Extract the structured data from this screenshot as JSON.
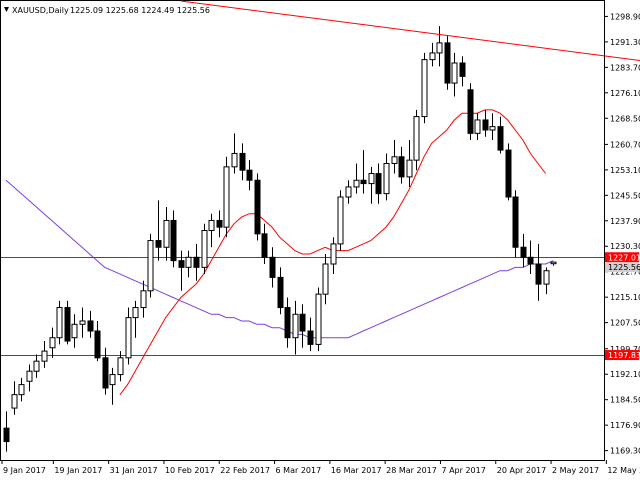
{
  "chart_data": {
    "type": "candlestick",
    "symbol": "XAUUSD",
    "timeframe": "Daily",
    "header": {
      "symbol_tf": "XAUUSD,Daily",
      "ohlc": "1225.09 1225.68 1224.49 1225.56",
      "open": 1225.09,
      "high": 1225.68,
      "low": 1224.49,
      "close": 1225.56
    },
    "ylim": [
      1166.5,
      1303.5
    ],
    "y_ticks": [
      "1298.90",
      "1291.30",
      "1283.70",
      "1276.10",
      "1268.50",
      "1260.70",
      "1253.10",
      "1245.50",
      "1237.90",
      "1230.30",
      "1222.70",
      "1215.10",
      "1207.50",
      "1199.70",
      "1192.10",
      "1184.50",
      "1176.90",
      "1169.30"
    ],
    "x_labels": [
      "9 Jan 2017",
      "19 Jan 2017",
      "31 Jan 2017",
      "10 Feb 2017",
      "22 Feb 2017",
      "6 Mar 2017",
      "16 Mar 2017",
      "28 Mar 2017",
      "7 Apr 2017",
      "20 Apr 2017",
      "2 May 2017",
      "12 May 2017"
    ],
    "price_levels": [
      {
        "value": 1227.01,
        "label": "1227.01",
        "color": "#ff0000"
      },
      {
        "value": 1197.83,
        "label": "1197.83",
        "color": "#ff0000"
      }
    ],
    "current_price": {
      "value": 1225.56,
      "label": "1225.56"
    },
    "candles": [
      [
        1176,
        1181,
        1169,
        1172
      ],
      [
        1182,
        1190,
        1180,
        1186
      ],
      [
        1186,
        1191,
        1184,
        1189
      ],
      [
        1190,
        1195,
        1187,
        1193
      ],
      [
        1193,
        1198,
        1191,
        1196
      ],
      [
        1196,
        1202,
        1194,
        1199
      ],
      [
        1200,
        1206,
        1197,
        1203
      ],
      [
        1203,
        1214,
        1201,
        1212
      ],
      [
        1212,
        1214,
        1201,
        1202
      ],
      [
        1203,
        1210,
        1200,
        1207
      ],
      [
        1207,
        1212,
        1203,
        1208
      ],
      [
        1208,
        1211,
        1203,
        1205
      ],
      [
        1205,
        1208,
        1196,
        1197
      ],
      [
        1197,
        1200,
        1186,
        1188
      ],
      [
        1189,
        1194,
        1183,
        1192
      ],
      [
        1192,
        1199,
        1190,
        1197
      ],
      [
        1197,
        1212,
        1195,
        1209
      ],
      [
        1209,
        1214,
        1203,
        1212
      ],
      [
        1212,
        1220,
        1209,
        1217
      ],
      [
        1217,
        1234,
        1215,
        1232
      ],
      [
        1232,
        1244,
        1226,
        1230
      ],
      [
        1230,
        1242,
        1226,
        1238
      ],
      [
        1238,
        1241,
        1224,
        1226
      ],
      [
        1226,
        1229,
        1217,
        1224
      ],
      [
        1224,
        1229,
        1221,
        1227
      ],
      [
        1227,
        1231,
        1220,
        1224
      ],
      [
        1224,
        1237,
        1222,
        1235
      ],
      [
        1235,
        1240,
        1230,
        1238
      ],
      [
        1238,
        1241,
        1233,
        1236
      ],
      [
        1236,
        1257,
        1233,
        1254
      ],
      [
        1254,
        1264,
        1252,
        1258
      ],
      [
        1258,
        1261,
        1250,
        1253
      ],
      [
        1253,
        1256,
        1247,
        1250
      ],
      [
        1250,
        1252,
        1232,
        1234
      ],
      [
        1234,
        1237,
        1225,
        1227
      ],
      [
        1227,
        1230,
        1218,
        1221
      ],
      [
        1221,
        1224,
        1210,
        1212
      ],
      [
        1212,
        1215,
        1200,
        1203
      ],
      [
        1203,
        1214,
        1198,
        1210
      ],
      [
        1210,
        1213,
        1200,
        1205
      ],
      [
        1205,
        1209,
        1199,
        1201
      ],
      [
        1201,
        1218,
        1199,
        1216
      ],
      [
        1216,
        1228,
        1213,
        1225
      ],
      [
        1225,
        1233,
        1222,
        1231
      ],
      [
        1231,
        1247,
        1229,
        1245
      ],
      [
        1245,
        1250,
        1243,
        1248
      ],
      [
        1248,
        1255,
        1246,
        1250
      ],
      [
        1250,
        1259,
        1246,
        1249
      ],
      [
        1249,
        1254,
        1243,
        1252
      ],
      [
        1252,
        1255,
        1243,
        1246
      ],
      [
        1246,
        1258,
        1244,
        1255
      ],
      [
        1255,
        1262,
        1252,
        1257
      ],
      [
        1257,
        1260,
        1249,
        1251
      ],
      [
        1251,
        1262,
        1248,
        1256
      ],
      [
        1256,
        1271,
        1253,
        1269
      ],
      [
        1269,
        1288,
        1267,
        1286
      ],
      [
        1286,
        1291,
        1284,
        1288
      ],
      [
        1288,
        1296,
        1284,
        1291
      ],
      [
        1291,
        1293,
        1277,
        1279
      ],
      [
        1279,
        1288,
        1275,
        1285
      ],
      [
        1285,
        1287,
        1278,
        1281
      ],
      [
        1277,
        1279,
        1262,
        1264
      ],
      [
        1264,
        1270,
        1262,
        1268
      ],
      [
        1268,
        1271,
        1263,
        1265
      ],
      [
        1265,
        1270,
        1262,
        1266
      ],
      [
        1266,
        1269,
        1258,
        1259
      ],
      [
        1259,
        1261,
        1244,
        1245
      ],
      [
        1245,
        1247,
        1227,
        1230
      ],
      [
        1230,
        1234,
        1224,
        1227
      ],
      [
        1227,
        1232,
        1222,
        1225
      ],
      [
        1225,
        1231,
        1214,
        1219
      ],
      [
        1219,
        1224,
        1216,
        1223
      ],
      [
        1225.09,
        1225.68,
        1224.49,
        1225.56
      ]
    ],
    "series": [
      {
        "type": "moving-average",
        "color": "#ff0000",
        "values": [
          null,
          null,
          null,
          null,
          null,
          null,
          null,
          null,
          null,
          null,
          null,
          null,
          null,
          null,
          null,
          1186,
          1189,
          1193,
          1197,
          1201,
          1205,
          1209,
          1212,
          1215,
          1217,
          1219,
          1222,
          1226,
          1230,
          1234,
          1237,
          1239,
          1240,
          1240,
          1238,
          1236,
          1233,
          1231,
          1229,
          1228,
          1228,
          1229,
          1230,
          1229,
          1229,
          1229,
          1230,
          1231,
          1232,
          1234,
          1236,
          1239,
          1243,
          1247,
          1252,
          1257,
          1261,
          1263,
          1265,
          1268,
          1270,
          1270,
          1270,
          1271,
          1271,
          1270,
          1268,
          1265,
          1262,
          1258,
          1255,
          1252,
          null
        ]
      },
      {
        "type": "moving-average",
        "color": "#7b3fe4",
        "values": [
          1250,
          1248,
          1246,
          1244,
          1242,
          1240,
          1238,
          1236,
          1234,
          1232,
          1230,
          1228,
          1226,
          1224,
          1223,
          1222,
          1221,
          1220,
          1219,
          1218,
          1217,
          1216,
          1215,
          1214,
          1213,
          1212,
          1211,
          1210,
          1210,
          1209,
          1209,
          1208,
          1208,
          1207,
          1207,
          1206,
          1206,
          1205,
          1204,
          1204,
          1203,
          1203,
          1203,
          1203,
          1203,
          1203,
          1204,
          1205,
          1206,
          1207,
          1208,
          1209,
          1210,
          1211,
          1212,
          1213,
          1214,
          1215,
          1216,
          1217,
          1218,
          1219,
          1220,
          1221,
          1222,
          1223,
          1223,
          1224,
          1224,
          1225,
          1225,
          1225,
          1226
        ]
      }
    ],
    "trendline": {
      "color": "#ff0000",
      "from": {
        "index": 23,
        "value": 1303.5
      },
      "to": {
        "index": 103,
        "value": 1280
      }
    },
    "grid": false
  }
}
